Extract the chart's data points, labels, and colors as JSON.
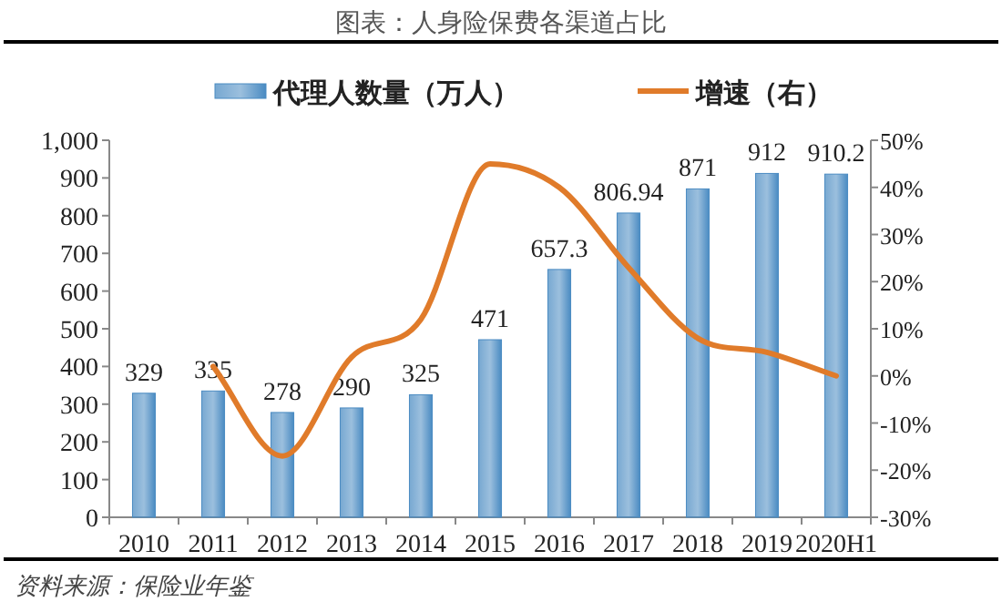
{
  "chart_data": {
    "type": "bar",
    "title": "图表：人身险保费各渠道占比",
    "categories": [
      "2010",
      "2011",
      "2012",
      "2013",
      "2014",
      "2015",
      "2016",
      "2017",
      "2018",
      "2019",
      "2020H1"
    ],
    "series": [
      {
        "name": "代理人数量（万人）",
        "color": "#4a8bc2",
        "values": [
          329,
          335,
          278,
          290,
          325,
          471,
          657.3,
          806.94,
          871,
          912,
          910.2
        ],
        "value_labels": [
          "329",
          "335",
          "278",
          "290",
          "325",
          "471",
          "657.3",
          "806.94",
          "871",
          "912",
          "910.2"
        ]
      },
      {
        "name": "增速（右）",
        "type": "line",
        "axis": "y2",
        "color": "#e07b2a",
        "values": [
          null,
          2,
          -17,
          4,
          12,
          45,
          40,
          23,
          8,
          5,
          0
        ]
      }
    ],
    "ylim": [
      0,
      1000
    ],
    "yticks": [
      0,
      100,
      200,
      300,
      400,
      500,
      600,
      700,
      800,
      900,
      {
        "value": 1000,
        "label": "1,000"
      }
    ],
    "y2lim": [
      -30,
      50
    ],
    "y2ticks": [
      {
        "value": -30,
        "label": "-30%"
      },
      {
        "value": -20,
        "label": "-20%"
      },
      {
        "value": -10,
        "label": "-10%"
      },
      {
        "value": 0,
        "label": "0%"
      },
      {
        "value": 10,
        "label": "10%"
      },
      {
        "value": 20,
        "label": "20%"
      },
      {
        "value": 30,
        "label": "30%"
      },
      {
        "value": 40,
        "label": "40%"
      },
      {
        "value": 50,
        "label": "50%"
      }
    ],
    "grid": false,
    "legend": "top",
    "annotations": [
      "资料来源：保险业年鉴"
    ]
  }
}
